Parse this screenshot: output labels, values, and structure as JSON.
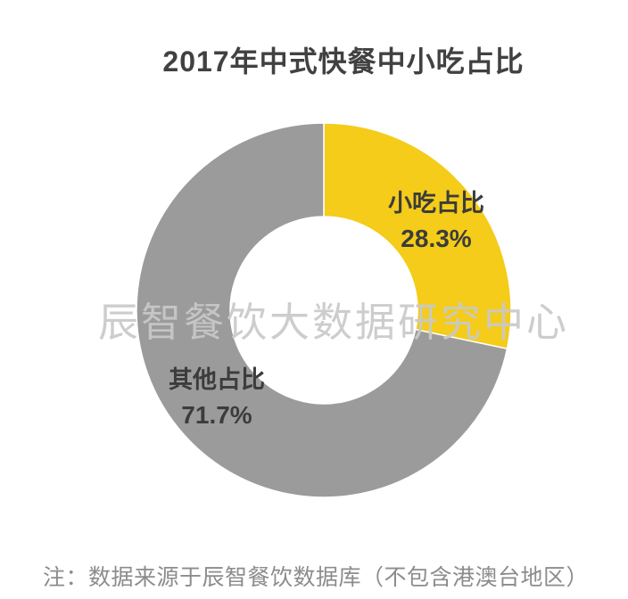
{
  "chart_data": {
    "type": "pie",
    "subtype": "donut",
    "title": "2017年中式快餐中小吃占比",
    "start_angle_deg": 0,
    "direction": "clockwise",
    "hole_ratio": 0.5,
    "legend_position": "none",
    "data_labels": "category name + percent, inside/beside slice",
    "slices": [
      {
        "id": "snack-share",
        "label": "小吃占比",
        "value": 28.3,
        "display": "28.3%",
        "color": "#F4CC19"
      },
      {
        "id": "other-share",
        "label": "其他占比",
        "value": 71.7,
        "display": "71.7%",
        "color": "#9B9B9B"
      }
    ]
  },
  "watermark": {
    "text": "辰智餐饮大数据研究中心"
  },
  "footnote": {
    "text": "注：数据来源于辰智餐饮数据库（不包含港澳台地区）"
  },
  "colors": {
    "background": "#FFFFFF",
    "title_text": "#414141",
    "label_text": "#3C3C3C",
    "footnote_text": "#8C8C8C",
    "watermark_text": "#C9C9C9",
    "slice_border": "#FFFFFF",
    "slice_snack": "#F4CC19",
    "slice_other": "#9B9B9B"
  }
}
